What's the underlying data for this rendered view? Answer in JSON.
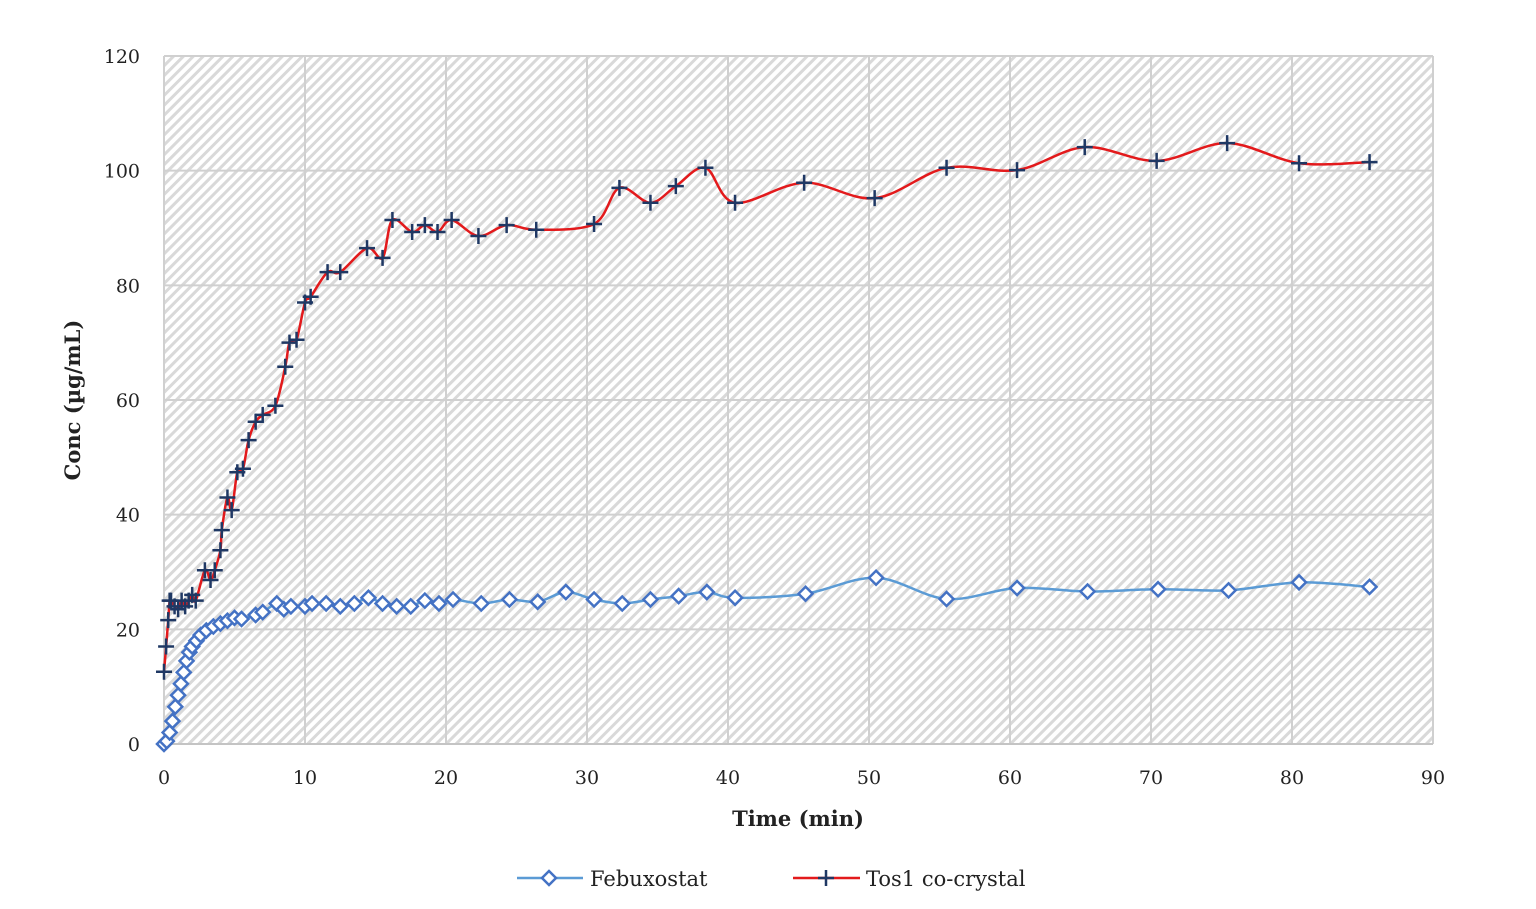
{
  "chart_data": {
    "type": "line",
    "title": "",
    "xlabel": "Time (min)",
    "ylabel": "Conc (µg/mL)",
    "xlim": [
      0,
      90
    ],
    "ylim": [
      0,
      120
    ],
    "xticks": [
      0,
      10,
      20,
      30,
      40,
      50,
      60,
      70,
      80,
      90
    ],
    "yticks": [
      0,
      20,
      40,
      60,
      80,
      100,
      120
    ],
    "grid": true,
    "legend_position": "bottom",
    "series": [
      {
        "name": "Febuxostat",
        "color": "#5b9bd5",
        "marker": "diamond-open",
        "marker_color": "#4472c4",
        "x": [
          0,
          0.2,
          0.4,
          0.6,
          0.8,
          1.0,
          1.2,
          1.4,
          1.6,
          1.8,
          2.0,
          2.3,
          2.6,
          3.0,
          3.5,
          4.0,
          4.5,
          5,
          5.5,
          6.5,
          7,
          8,
          8.5,
          9,
          10,
          10.5,
          11.5,
          12.5,
          13.5,
          14.5,
          15.5,
          16.5,
          17.5,
          18.5,
          19.5,
          20.5,
          22.5,
          24.5,
          26.5,
          28.5,
          30.5,
          32.5,
          34.5,
          36.5,
          38.5,
          40.5,
          45.5,
          50.5,
          55.5,
          60.5,
          65.5,
          70.5,
          75.5,
          80.5,
          85.5
        ],
        "y": [
          0,
          0.5,
          2,
          4,
          6.5,
          8.5,
          10.5,
          12.5,
          14.5,
          16,
          17,
          18,
          19,
          19.8,
          20.5,
          21,
          21.5,
          22,
          21.8,
          22.5,
          23,
          24.5,
          23.5,
          24,
          24,
          24.5,
          24.5,
          24,
          24.5,
          25.5,
          24.5,
          24,
          24,
          25,
          24.5,
          25.2,
          24.5,
          25.2,
          24.8,
          26.5,
          25.2,
          24.5,
          25.2,
          25.8,
          26.5,
          25.5,
          26.2,
          29,
          25.3,
          27.2,
          26.6,
          27,
          26.8,
          28.2,
          27.4
        ]
      },
      {
        "name": "Tos1 co-crystal",
        "color": "#e31a1c",
        "marker": "plus",
        "marker_color": "#1f3864",
        "x": [
          0,
          0.15,
          0.3,
          0.4,
          0.5,
          0.75,
          1,
          1.25,
          1.5,
          1.75,
          2,
          2.25,
          2.9,
          3.3,
          3.6,
          4.0,
          4.1,
          4.5,
          4.8,
          5.2,
          5.6,
          6.0,
          6.5,
          7,
          7.9,
          8.6,
          8.9,
          9.4,
          10,
          10.4,
          11.6,
          12.5,
          14.4,
          15.5,
          16.2,
          17.6,
          18.5,
          19.4,
          20.4,
          22.3,
          24.3,
          26.4,
          30.5,
          32.3,
          34.5,
          36.3,
          38.4,
          40.5,
          45.4,
          50.4,
          55.5,
          60.5,
          65.3,
          70.4,
          75.4,
          80.5,
          85.5
        ],
        "y": [
          12.6,
          17,
          21.6,
          25,
          25,
          24,
          23.5,
          25,
          24,
          25,
          26,
          25,
          30.3,
          28.6,
          30.3,
          33.8,
          37.3,
          43,
          40.8,
          47.4,
          48,
          53,
          56.2,
          57.4,
          59,
          65.8,
          70,
          70.5,
          77,
          78,
          82.3,
          82.3,
          86.5,
          84.8,
          91.4,
          89.3,
          90.5,
          89.3,
          91.4,
          88.6,
          90.5,
          89.7,
          90.7,
          97,
          94.4,
          97.3,
          100.5,
          94.4,
          97.9,
          95.2,
          100.5,
          100.1,
          104.1,
          101.7,
          104.8,
          101.3,
          101.5
        ]
      }
    ]
  }
}
